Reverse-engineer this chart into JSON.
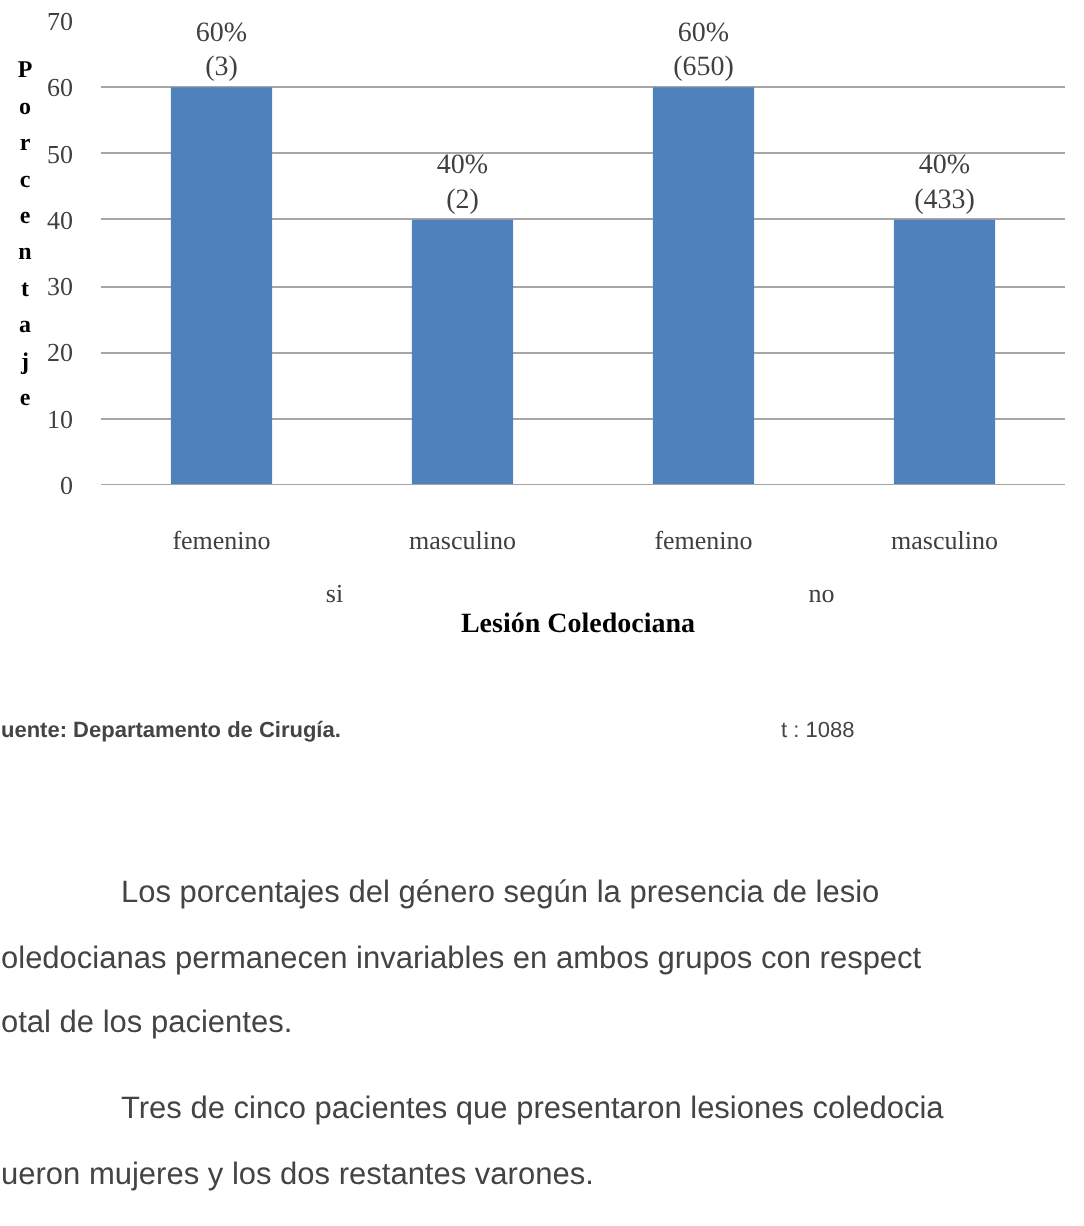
{
  "chart_data": {
    "type": "bar",
    "categories": [
      "femenino",
      "masculino",
      "femenino",
      "masculino"
    ],
    "values": [
      60,
      40,
      60,
      40
    ],
    "value_labels": [
      "60%\n(3)",
      "40%\n(2)",
      "60%\n(650)",
      "40%\n(433)"
    ],
    "color": "#4f81bd",
    "ylim": [
      0,
      70
    ],
    "yticks": [
      0,
      10,
      20,
      30,
      40,
      50,
      60,
      70
    ],
    "grid": "y",
    "xlabel": "Lesión Coledociana",
    "ylabel": "Porcentaje",
    "annotations": [
      "si",
      "no",
      "uente: Departamento de Cirugía.",
      "t : 1088",
      "Los  porcentajes  del  género  según  la  presencia  de  lesio",
      "oledocianas permanecen invariables en ambos grupos con respect",
      "otal de los pacientes.",
      "Tres  de  cinco  pacientes  que  presentaron  lesiones  coledocia",
      "ueron mujeres y los dos restantes varones."
    ]
  }
}
